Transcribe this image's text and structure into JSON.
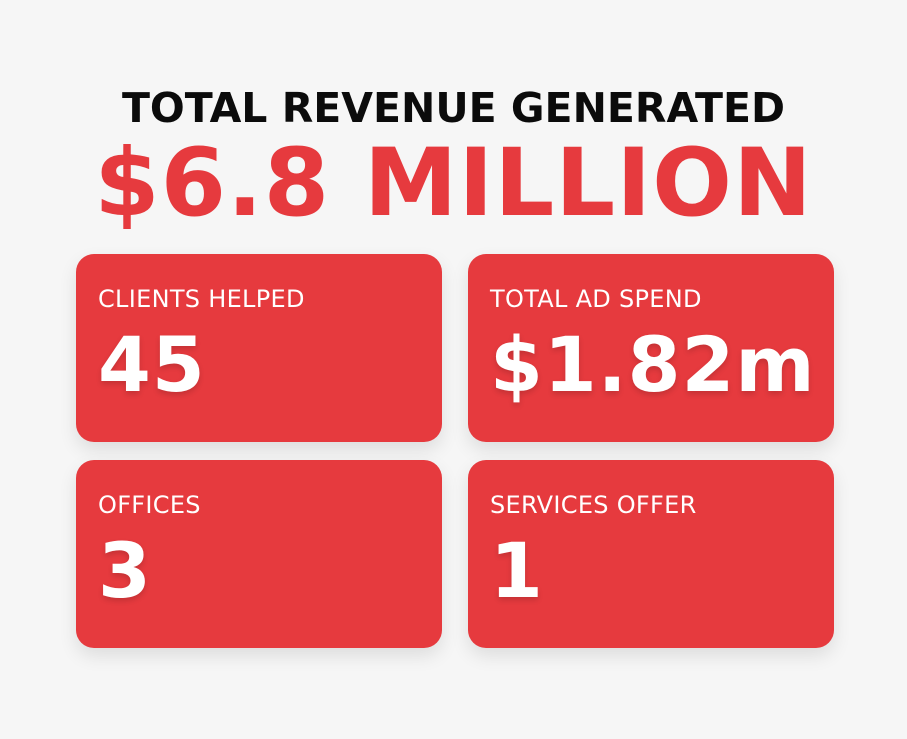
{
  "headline": "TOTAL REVENUE GENERATED",
  "total_value": "$6.8 MILLION",
  "colors": {
    "accent": "#e63a3e",
    "background": "#f6f6f6",
    "headline_text": "#0b0b0b",
    "card_text": "#ffffff"
  },
  "stats": [
    {
      "label": "CLIENTS HELPED",
      "value": "45"
    },
    {
      "label": "TOTAL AD SPEND",
      "value": "$1.82m"
    },
    {
      "label": "OFFICES",
      "value": "3"
    },
    {
      "label": "SERVICES OFFER",
      "value": "1"
    }
  ]
}
